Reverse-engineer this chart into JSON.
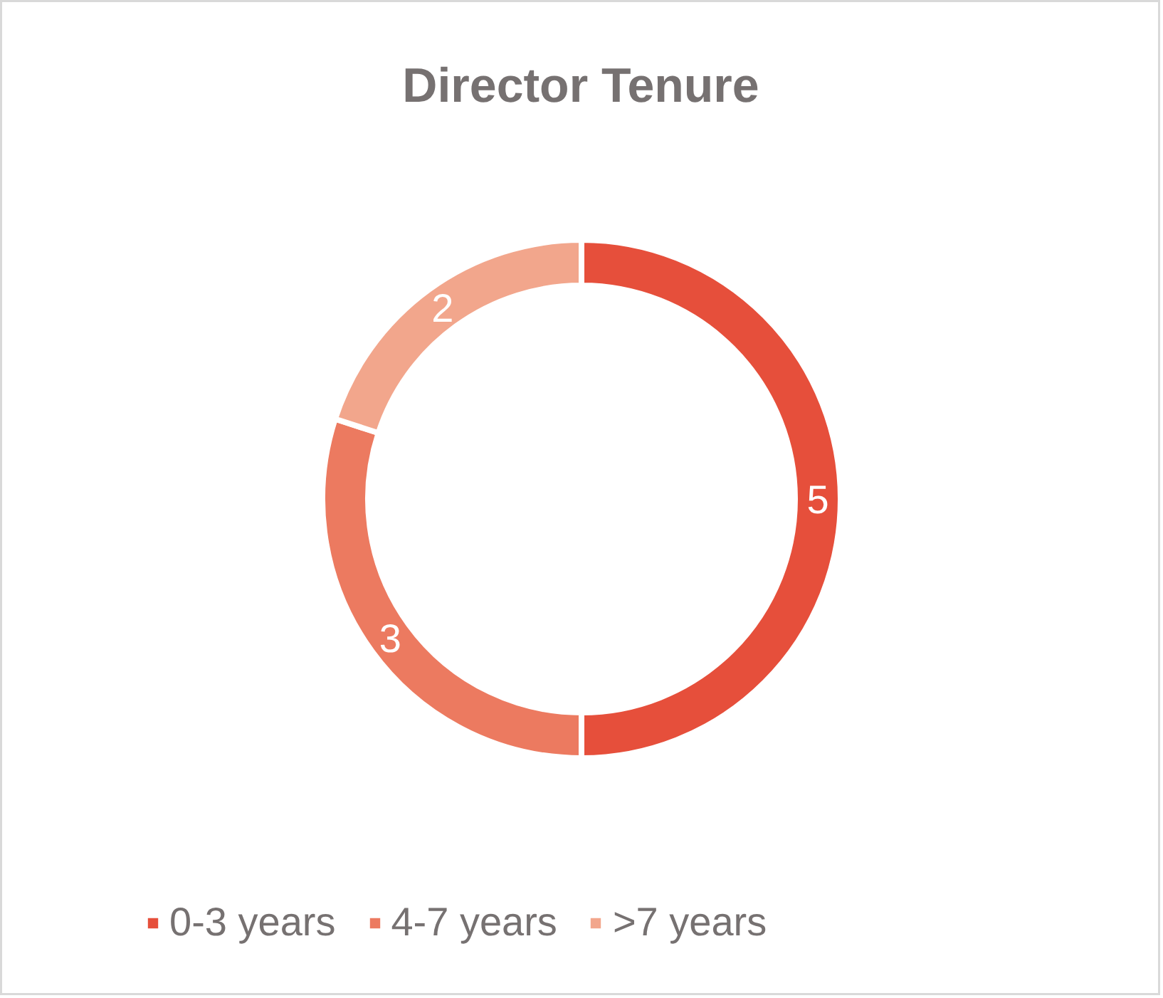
{
  "chart_data": {
    "type": "donut",
    "title": "Director Tenure",
    "categories": [
      "0-3 years",
      "4-7 years",
      ">7 years"
    ],
    "values": [
      5,
      3,
      2
    ],
    "colors": [
      "#e64f3b",
      "#ec7a60",
      "#f2a68c"
    ],
    "data_labels": true,
    "legend": "bottom"
  }
}
